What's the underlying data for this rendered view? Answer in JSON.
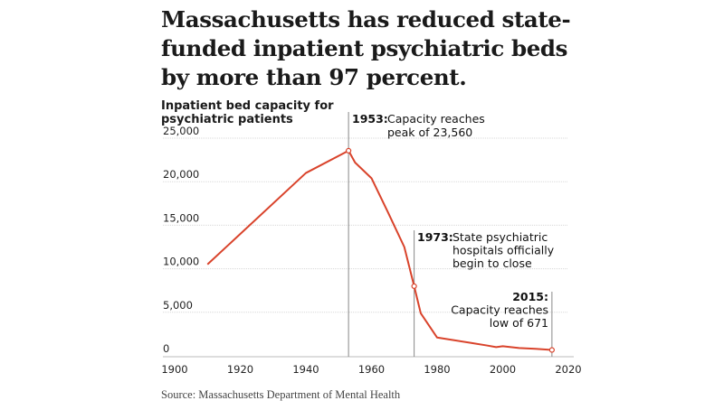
{
  "header": {
    "title": "Massachusetts has reduced state-funded inpatient psychiatric beds by more than 97 percent.",
    "chart_label": "Inpatient bed capacity for psychiatric patients"
  },
  "footer": {
    "source": "Source: Massachusetts Department of Mental Health"
  },
  "colors": {
    "line": "#d9432b",
    "grid": "#d8d8d8",
    "marker": "#888888",
    "text": "#1a1a1a"
  },
  "chart_data": {
    "type": "line",
    "title": "Massachusetts has reduced state-funded inpatient psychiatric beds by more than 97 percent.",
    "ylabel": "Inpatient bed capacity for psychiatric patients",
    "xlabel": "",
    "xlim": [
      1900,
      2020
    ],
    "ylim": [
      0,
      25000
    ],
    "x_ticks": [
      1900,
      1920,
      1940,
      1960,
      1980,
      2000,
      2020
    ],
    "y_ticks": [
      0,
      5000,
      10000,
      15000,
      20000,
      25000
    ],
    "x_tick_labels": [
      "1900",
      "1920",
      "1940",
      "1960",
      "1980",
      "2000",
      "2020"
    ],
    "y_tick_labels": [
      "0",
      "5,000",
      "10,000",
      "15,000",
      "20,000",
      "25,000"
    ],
    "grid": "horizontal",
    "series": [
      {
        "name": "Bed capacity",
        "x": [
          1910,
          1940,
          1953,
          1955,
          1960,
          1965,
          1970,
          1973,
          1975,
          1980,
          1985,
          1990,
          1995,
          1998,
          2000,
          2005,
          2010,
          2015
        ],
        "y": [
          10500,
          21000,
          23560,
          22200,
          20400,
          16500,
          12500,
          8000,
          4900,
          2100,
          1800,
          1500,
          1200,
          1000,
          1100,
          900,
          800,
          671
        ]
      }
    ],
    "annotations": [
      {
        "x": 1953,
        "y": 23560,
        "year_label": "1953:",
        "lines": [
          "Capacity reaches",
          "peak of 23,560"
        ]
      },
      {
        "x": 1973,
        "y": 8000,
        "year_label": "1973:",
        "lines": [
          "State psychiatric",
          "hospitals officially",
          "begin to close"
        ]
      },
      {
        "x": 2015,
        "y": 671,
        "year_label": "2015:",
        "lines": [
          "Capacity reaches",
          "low of 671"
        ]
      }
    ]
  }
}
